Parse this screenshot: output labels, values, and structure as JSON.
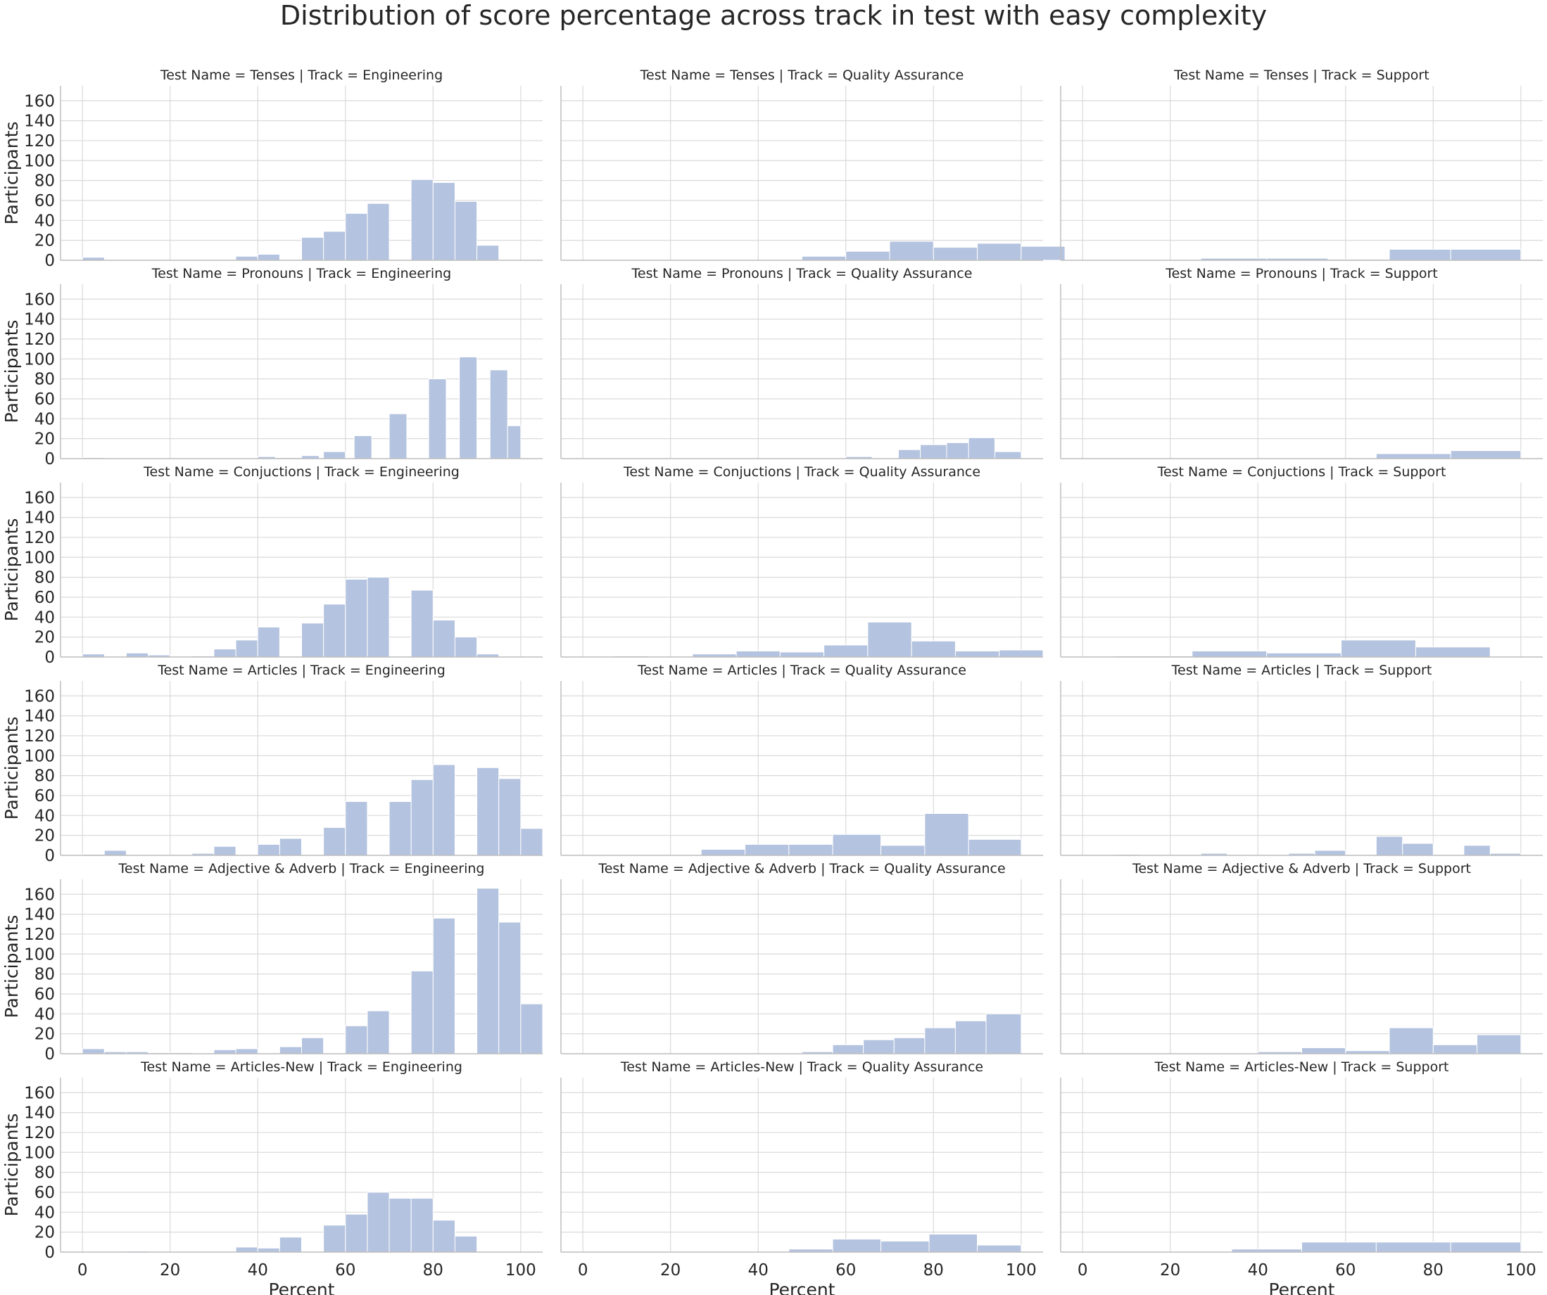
{
  "chart_data": {
    "type": "histogram-facet-grid",
    "title": "Distribution of score percentage across track in test with easy complexity",
    "xlabel": "Percent",
    "ylabel": "Participants",
    "xlim": [
      -5,
      105
    ],
    "ylim": [
      0,
      175
    ],
    "xticks": [
      0,
      20,
      40,
      60,
      80,
      100
    ],
    "yticks": [
      0,
      20,
      40,
      60,
      80,
      100,
      120,
      140,
      160
    ],
    "bar_color": "#b4c3df",
    "grid": true,
    "columns": [
      "Engineering",
      "Quality Assurance",
      "Support"
    ],
    "rows": [
      "Tenses",
      "Pronouns",
      "Conjuctions",
      "Articles",
      "Adjective & Adverb",
      "Articles-New"
    ],
    "facets": [
      {
        "title": "Test Name = Tenses | Track = Engineering",
        "bins": [
          [
            0,
            5,
            3
          ],
          [
            35,
            40,
            4
          ],
          [
            40,
            45,
            6
          ],
          [
            50,
            55,
            23
          ],
          [
            55,
            60,
            29
          ],
          [
            60,
            65,
            47
          ],
          [
            65,
            70,
            57
          ],
          [
            75,
            80,
            81
          ],
          [
            80,
            85,
            78
          ],
          [
            85,
            90,
            59
          ],
          [
            90,
            95,
            15
          ]
        ]
      },
      {
        "title": "Test Name = Tenses | Track = Quality Assurance",
        "bins": [
          [
            50,
            60,
            4
          ],
          [
            60,
            70,
            9
          ],
          [
            70,
            80,
            19
          ],
          [
            80,
            90,
            13
          ],
          [
            90,
            100,
            17
          ],
          [
            100,
            110,
            14
          ]
        ]
      },
      {
        "title": "Test Name = Tenses | Track = Support",
        "bins": [
          [
            27,
            42,
            2
          ],
          [
            42,
            56,
            2
          ],
          [
            56,
            70,
            1
          ],
          [
            70,
            84,
            11
          ],
          [
            84,
            100,
            11
          ]
        ]
      },
      {
        "title": "Test Name = Pronouns | Track = Engineering",
        "bins": [
          [
            0,
            5,
            1
          ],
          [
            40,
            44,
            2
          ],
          [
            44,
            50,
            1
          ],
          [
            50,
            54,
            3
          ],
          [
            55,
            60,
            7
          ],
          [
            62,
            66,
            23
          ],
          [
            70,
            74,
            45
          ],
          [
            79,
            83,
            80
          ],
          [
            86,
            90,
            102
          ],
          [
            93,
            97,
            89
          ],
          [
            97,
            100,
            33
          ]
        ]
      },
      {
        "title": "Test Name = Pronouns | Track = Quality Assurance",
        "bins": [
          [
            60,
            66,
            2
          ],
          [
            72,
            77,
            9
          ],
          [
            77,
            83,
            14
          ],
          [
            83,
            88,
            16
          ],
          [
            88,
            94,
            21
          ],
          [
            94,
            100,
            7
          ]
        ]
      },
      {
        "title": "Test Name = Pronouns | Track = Support",
        "bins": [
          [
            67,
            84,
            5
          ],
          [
            84,
            100,
            8
          ]
        ]
      },
      {
        "title": "Test Name = Conjuctions | Track = Engineering",
        "bins": [
          [
            0,
            5,
            3
          ],
          [
            10,
            15,
            4
          ],
          [
            15,
            20,
            2
          ],
          [
            25,
            30,
            1
          ],
          [
            30,
            35,
            8
          ],
          [
            35,
            40,
            17
          ],
          [
            40,
            45,
            30
          ],
          [
            50,
            55,
            34
          ],
          [
            55,
            60,
            53
          ],
          [
            60,
            65,
            78
          ],
          [
            65,
            70,
            80
          ],
          [
            75,
            80,
            67
          ],
          [
            80,
            85,
            37
          ],
          [
            85,
            90,
            20
          ],
          [
            90,
            95,
            3
          ]
        ]
      },
      {
        "title": "Test Name = Conjuctions | Track = Quality Assurance",
        "bins": [
          [
            7,
            15,
            1
          ],
          [
            25,
            35,
            3
          ],
          [
            35,
            45,
            6
          ],
          [
            45,
            55,
            5
          ],
          [
            55,
            65,
            12
          ],
          [
            65,
            75,
            35
          ],
          [
            75,
            85,
            16
          ],
          [
            85,
            95,
            6
          ],
          [
            95,
            105,
            7
          ]
        ]
      },
      {
        "title": "Test Name = Conjuctions | Track = Support",
        "bins": [
          [
            7,
            25,
            1
          ],
          [
            25,
            42,
            6
          ],
          [
            42,
            59,
            4
          ],
          [
            59,
            76,
            17
          ],
          [
            76,
            93,
            10
          ]
        ]
      },
      {
        "title": "Test Name = Articles | Track = Engineering",
        "bins": [
          [
            0,
            5,
            1
          ],
          [
            5,
            10,
            5
          ],
          [
            25,
            30,
            2
          ],
          [
            30,
            35,
            9
          ],
          [
            40,
            45,
            11
          ],
          [
            45,
            50,
            17
          ],
          [
            55,
            60,
            28
          ],
          [
            60,
            65,
            54
          ],
          [
            70,
            75,
            54
          ],
          [
            75,
            80,
            76
          ],
          [
            80,
            85,
            91
          ],
          [
            90,
            95,
            88
          ],
          [
            95,
            100,
            77
          ],
          [
            100,
            105,
            27
          ]
        ]
      },
      {
        "title": "Test Name = Articles | Track = Quality Assurance",
        "bins": [
          [
            27,
            37,
            6
          ],
          [
            37,
            47,
            11
          ],
          [
            47,
            57,
            11
          ],
          [
            57,
            68,
            21
          ],
          [
            68,
            78,
            10
          ],
          [
            78,
            88,
            42
          ],
          [
            88,
            100,
            16
          ]
        ]
      },
      {
        "title": "Test Name = Articles | Track = Support",
        "bins": [
          [
            7,
            13,
            1
          ],
          [
            27,
            33,
            2
          ],
          [
            47,
            53,
            2
          ],
          [
            53,
            60,
            5
          ],
          [
            67,
            73,
            19
          ],
          [
            73,
            80,
            12
          ],
          [
            87,
            93,
            10
          ],
          [
            93,
            100,
            2
          ]
        ]
      },
      {
        "title": "Test Name = Adjective & Adverb | Track = Engineering",
        "bins": [
          [
            0,
            5,
            5
          ],
          [
            5,
            10,
            2
          ],
          [
            10,
            15,
            2
          ],
          [
            15,
            20,
            1
          ],
          [
            20,
            25,
            1
          ],
          [
            30,
            35,
            4
          ],
          [
            35,
            40,
            5
          ],
          [
            45,
            50,
            7
          ],
          [
            50,
            55,
            16
          ],
          [
            60,
            65,
            28
          ],
          [
            65,
            70,
            43
          ],
          [
            75,
            80,
            83
          ],
          [
            80,
            85,
            136
          ],
          [
            90,
            95,
            166
          ],
          [
            95,
            100,
            132
          ],
          [
            100,
            105,
            50
          ]
        ]
      },
      {
        "title": "Test Name = Adjective & Adverb | Track = Quality Assurance",
        "bins": [
          [
            50,
            57,
            2
          ],
          [
            57,
            64,
            9
          ],
          [
            64,
            71,
            14
          ],
          [
            71,
            78,
            16
          ],
          [
            78,
            85,
            26
          ],
          [
            85,
            92,
            33
          ],
          [
            92,
            100,
            40
          ]
        ]
      },
      {
        "title": "Test Name = Adjective & Adverb | Track = Support",
        "bins": [
          [
            40,
            50,
            2
          ],
          [
            50,
            60,
            6
          ],
          [
            60,
            70,
            3
          ],
          [
            70,
            80,
            26
          ],
          [
            80,
            90,
            9
          ],
          [
            90,
            100,
            19
          ]
        ]
      },
      {
        "title": "Test Name = Articles-New | Track = Engineering",
        "bins": [
          [
            10,
            15,
            1
          ],
          [
            35,
            40,
            5
          ],
          [
            40,
            45,
            4
          ],
          [
            45,
            50,
            15
          ],
          [
            55,
            60,
            27
          ],
          [
            60,
            65,
            38
          ],
          [
            65,
            70,
            60
          ],
          [
            70,
            75,
            54
          ],
          [
            75,
            80,
            54
          ],
          [
            80,
            85,
            32
          ],
          [
            85,
            90,
            16
          ]
        ]
      },
      {
        "title": "Test Name = Articles-New | Track = Quality Assurance",
        "bins": [
          [
            47,
            57,
            3
          ],
          [
            57,
            68,
            13
          ],
          [
            68,
            79,
            11
          ],
          [
            79,
            90,
            18
          ],
          [
            90,
            100,
            7
          ]
        ]
      },
      {
        "title": "Test Name = Articles-New | Track = Support",
        "bins": [
          [
            34,
            50,
            3
          ],
          [
            50,
            67,
            10
          ],
          [
            67,
            84,
            10
          ],
          [
            84,
            100,
            10
          ]
        ]
      }
    ]
  }
}
